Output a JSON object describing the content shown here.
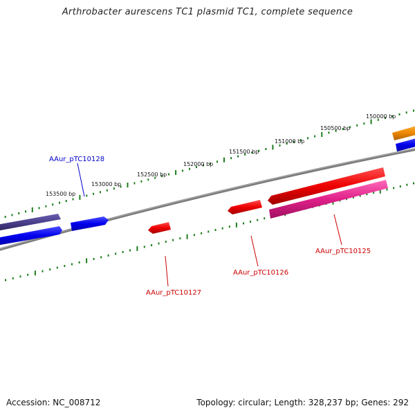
{
  "title": "Arthrobacter aurescens TC1 plasmid TC1, complete sequence",
  "footer": {
    "accession": "Accession: NC_008712",
    "info": "Topology: circular; Length: 328,237 bp; Genes: 292"
  },
  "colors": {
    "backbone": "#808080",
    "tick": "#1c7c1c",
    "forward_gene": "#0000ee",
    "forward_gene_dark": "#4a3f8a",
    "reverse_gene": "#ee0000",
    "reverse_gene_pink": "#e0208a",
    "orange_gene": "#ee8800",
    "label_blue": "#0000cc",
    "label_red": "#cc0000"
  },
  "ticks": [
    {
      "label": "150000 bp"
    },
    {
      "label": "150500 bp"
    },
    {
      "label": "151000 bp"
    },
    {
      "label": "151500 bp"
    },
    {
      "label": "152000 bp"
    },
    {
      "label": "152500 bp"
    },
    {
      "label": "153000 bp"
    },
    {
      "label": "153500 bp"
    }
  ],
  "gene_labels": [
    {
      "name": "AAur_pTC10128"
    },
    {
      "name": "AAur_pTC10127"
    },
    {
      "name": "AAur_pTC10126"
    },
    {
      "name": "AAur_pTC10125"
    }
  ]
}
